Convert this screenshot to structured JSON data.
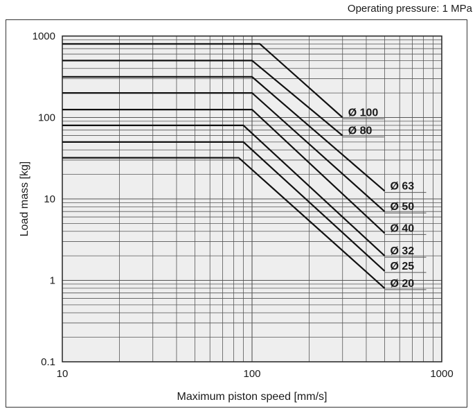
{
  "header": {
    "operating_pressure": "Operating pressure: 1 MPa"
  },
  "chart_data": {
    "type": "line",
    "title": "",
    "xlabel": "Maximum piston speed [mm/s]",
    "ylabel": "Load mass [kg]",
    "x_scale": "log",
    "y_scale": "log",
    "xlim": [
      10,
      1000
    ],
    "ylim": [
      0.1,
      1000
    ],
    "x_ticks": [
      "10",
      "100",
      "1000"
    ],
    "y_ticks": [
      "0.1",
      "1",
      "10",
      "100",
      "1000"
    ],
    "grid": true,
    "background": "#eeeeee",
    "line_color": "#111111",
    "series": [
      {
        "name": "Ø 100",
        "label": "Ø 100",
        "x": [
          10,
          110,
          300
        ],
        "y": [
          800,
          800,
          100
        ]
      },
      {
        "name": "Ø 80",
        "label": "Ø 80",
        "x": [
          10,
          100,
          300
        ],
        "y": [
          500,
          500,
          60
        ]
      },
      {
        "name": "Ø 63",
        "label": "Ø 63",
        "x": [
          10,
          100,
          500
        ],
        "y": [
          315,
          315,
          12.5
        ]
      },
      {
        "name": "Ø 50",
        "label": "Ø 50",
        "x": [
          10,
          100,
          500
        ],
        "y": [
          200,
          200,
          7
        ]
      },
      {
        "name": "Ø 40",
        "label": "Ø 40",
        "x": [
          10,
          100,
          500
        ],
        "y": [
          125,
          125,
          3.8
        ]
      },
      {
        "name": "Ø 32",
        "label": "Ø 32",
        "x": [
          10,
          90,
          500
        ],
        "y": [
          80,
          80,
          2.0
        ]
      },
      {
        "name": "Ø 25",
        "label": "Ø 25",
        "x": [
          10,
          90,
          500
        ],
        "y": [
          50,
          50,
          1.3
        ]
      },
      {
        "name": "Ø 20",
        "label": "Ø 20",
        "x": [
          10,
          85,
          500
        ],
        "y": [
          32,
          32,
          0.8
        ]
      }
    ]
  }
}
